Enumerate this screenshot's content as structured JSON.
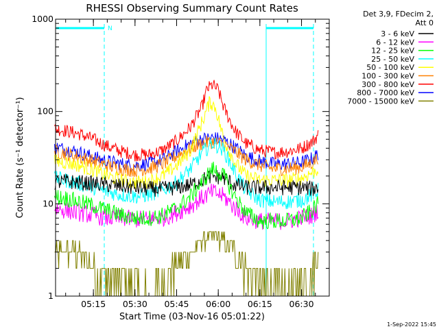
{
  "chart_data": {
    "type": "line",
    "title": "RHESSI Observing Summary Count Rates",
    "xlabel": "Start Time (03-Nov-16 05:01:22)",
    "ylabel": "Count Rate (s⁻¹ detector⁻¹)",
    "y_scale": "log",
    "ylim": [
      1,
      1000
    ],
    "xlim": [
      "05:01:22",
      "06:40:00"
    ],
    "x_tick_labels": [
      "05:15",
      "05:30",
      "05:45",
      "06:00",
      "06:15",
      "06:30"
    ],
    "y_tick_labels": [
      "1",
      "10",
      "100",
      "1000"
    ],
    "legend_header": [
      "Det 3,9, FDecim 2,",
      "Att 0"
    ],
    "legend_placement": "right, outside plot",
    "timestamp": "1-Sep-2022 15:45",
    "attenuator_flag": "N",
    "night_intervals": [
      [
        "05:01:22",
        "05:18:30"
      ],
      [
        "06:19:00",
        "06:36:00"
      ]
    ],
    "series": [
      {
        "name": "3 - 6 keV",
        "color": "#000000",
        "x": [
          "05:01",
          "05:05",
          "05:10",
          "05:15",
          "05:20",
          "05:25",
          "05:30",
          "05:35",
          "05:40",
          "05:45",
          "05:50",
          "05:54",
          "05:58",
          "06:02",
          "06:06",
          "06:10",
          "06:15",
          "06:20",
          "06:25",
          "06:30",
          "06:34",
          "06:36"
        ],
        "y": [
          17,
          17.5,
          17,
          16.5,
          16,
          15.5,
          15,
          14.5,
          14.5,
          15,
          16,
          18,
          20,
          19,
          16,
          15,
          15,
          15,
          15,
          15,
          14.5,
          15
        ]
      },
      {
        "name": "6 - 12 keV",
        "color": "#ff00ff",
        "x": [
          "05:01",
          "05:05",
          "05:10",
          "05:15",
          "05:20",
          "05:25",
          "05:30",
          "05:35",
          "05:40",
          "05:45",
          "05:50",
          "05:54",
          "05:58",
          "06:02",
          "06:06",
          "06:10",
          "06:15",
          "06:20",
          "06:25",
          "06:30",
          "06:34",
          "06:36"
        ],
        "y": [
          9,
          8.5,
          8,
          7.5,
          7,
          7,
          6.8,
          6.8,
          7,
          8,
          9.5,
          11.5,
          13.5,
          12,
          9,
          7,
          6.5,
          6.5,
          6.5,
          7,
          7.5,
          8.5
        ]
      },
      {
        "name": "12 - 25 keV",
        "color": "#00ff00",
        "x": [
          "05:01",
          "05:05",
          "05:10",
          "05:15",
          "05:20",
          "05:25",
          "05:30",
          "05:35",
          "05:40",
          "05:45",
          "05:50",
          "05:54",
          "05:58",
          "06:02",
          "06:06",
          "06:10",
          "06:15",
          "06:20",
          "06:25",
          "06:30",
          "06:34",
          "06:36"
        ],
        "y": [
          12,
          11.5,
          10.5,
          9.5,
          8.5,
          7.5,
          7,
          7,
          7.5,
          9,
          12,
          17,
          24,
          20,
          12,
          8,
          6.5,
          6.5,
          6.5,
          7,
          8.5,
          10
        ]
      },
      {
        "name": "25 - 50 keV",
        "color": "#00ffff",
        "x": [
          "05:01",
          "05:05",
          "05:10",
          "05:15",
          "05:20",
          "05:25",
          "05:30",
          "05:35",
          "05:40",
          "05:45",
          "05:50",
          "05:54",
          "05:58",
          "06:02",
          "06:06",
          "06:10",
          "06:15",
          "06:20",
          "06:25",
          "06:30",
          "06:34",
          "06:36"
        ],
        "y": [
          19,
          18,
          16.5,
          15,
          13.5,
          12.5,
          12,
          12.5,
          14,
          17,
          24,
          35,
          46,
          38,
          22,
          14,
          11,
          10.5,
          10.5,
          11,
          12.5,
          14
        ]
      },
      {
        "name": "50 - 100 keV",
        "color": "#ffff00",
        "x": [
          "05:01",
          "05:05",
          "05:10",
          "05:15",
          "05:20",
          "05:25",
          "05:30",
          "05:35",
          "05:40",
          "05:45",
          "05:50",
          "05:54",
          "05:57",
          "05:59",
          "06:02",
          "06:06",
          "06:10",
          "06:15",
          "06:20",
          "06:25",
          "06:30",
          "06:34",
          "06:36"
        ],
        "y": [
          29,
          28,
          26,
          23,
          20,
          18,
          17,
          17.5,
          20,
          26,
          38,
          75,
          128,
          110,
          50,
          28,
          20,
          18,
          18,
          18,
          19,
          22,
          24
        ]
      },
      {
        "name": "100 - 300 keV",
        "color": "#ff8000",
        "x": [
          "05:01",
          "05:05",
          "05:10",
          "05:15",
          "05:20",
          "05:25",
          "05:30",
          "05:35",
          "05:40",
          "05:45",
          "05:50",
          "05:54",
          "05:58",
          "06:02",
          "06:06",
          "06:10",
          "06:15",
          "06:20",
          "06:25",
          "06:30",
          "06:34",
          "06:36"
        ],
        "y": [
          37,
          35,
          32,
          29,
          26,
          24,
          23,
          24,
          27,
          33,
          40,
          45,
          47,
          44,
          37,
          30,
          26,
          24,
          24,
          25,
          28,
          32
        ]
      },
      {
        "name": "300 - 800 keV",
        "color": "#ff0000",
        "x": [
          "05:01",
          "05:05",
          "05:10",
          "05:15",
          "05:20",
          "05:25",
          "05:30",
          "05:35",
          "05:40",
          "05:45",
          "05:50",
          "05:54",
          "05:56",
          "05:58",
          "06:00",
          "06:02",
          "06:06",
          "06:10",
          "06:15",
          "06:20",
          "06:25",
          "06:30",
          "06:34",
          "06:36"
        ],
        "y": [
          65,
          62,
          57,
          50,
          42,
          37,
          34,
          34,
          38,
          48,
          68,
          110,
          175,
          195,
          170,
          110,
          62,
          45,
          38,
          36,
          37,
          40,
          47,
          56
        ]
      },
      {
        "name": "800 - 7000 keV",
        "color": "#0000ff",
        "x": [
          "05:01",
          "05:05",
          "05:10",
          "05:15",
          "05:20",
          "05:25",
          "05:30",
          "05:35",
          "05:40",
          "05:45",
          "05:50",
          "05:54",
          "05:58",
          "06:02",
          "06:06",
          "06:10",
          "06:15",
          "06:20",
          "06:25",
          "06:30",
          "06:34",
          "06:36"
        ],
        "y": [
          41,
          39,
          36,
          32,
          29,
          27,
          26,
          27,
          30,
          37,
          45,
          50,
          52,
          49,
          41,
          33,
          29,
          27,
          27,
          28,
          31,
          35
        ]
      },
      {
        "name": "7000 - 15000 keV",
        "color": "#808000",
        "x": [
          "05:01",
          "05:05",
          "05:10",
          "05:15",
          "05:20",
          "05:25",
          "05:30",
          "05:35",
          "05:40",
          "05:45",
          "05:50",
          "05:54",
          "05:58",
          "06:02",
          "06:06",
          "06:10",
          "06:15",
          "06:20",
          "06:25",
          "06:30",
          "06:34",
          "06:36"
        ],
        "y": [
          3,
          3,
          3,
          2,
          1.5,
          1.5,
          1.2,
          1,
          1.5,
          2,
          3,
          4,
          4.5,
          4,
          3,
          2,
          1.5,
          1.2,
          1,
          1.5,
          2,
          3
        ]
      }
    ]
  }
}
